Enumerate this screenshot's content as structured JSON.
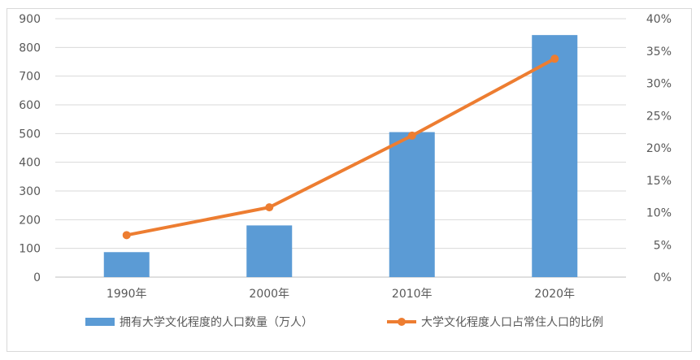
{
  "chart_data": {
    "type": "bar+line",
    "categories": [
      "1990年",
      "2000年",
      "2010年",
      "2020年"
    ],
    "series": [
      {
        "name": "拥有大学文化程度的人口数量（万人）",
        "type": "bar",
        "axis": "left",
        "color": "#5b9bd5",
        "values": [
          87,
          180,
          505,
          843
        ]
      },
      {
        "name": "大学文化程度人口占常住人口的比例",
        "type": "line",
        "axis": "right",
        "color": "#ed7d31",
        "values": [
          6.5,
          10.8,
          21.9,
          33.8
        ]
      }
    ],
    "left_axis": {
      "ticks": [
        "0",
        "100",
        "200",
        "300",
        "400",
        "500",
        "600",
        "700",
        "800",
        "900"
      ],
      "ylim": [
        0,
        900
      ]
    },
    "right_axis": {
      "ticks": [
        "0%",
        "5%",
        "10%",
        "15%",
        "20%",
        "25%",
        "30%",
        "35%",
        "40%"
      ],
      "ylim": [
        0,
        40
      ]
    },
    "grid": true,
    "legend": "bottom"
  }
}
